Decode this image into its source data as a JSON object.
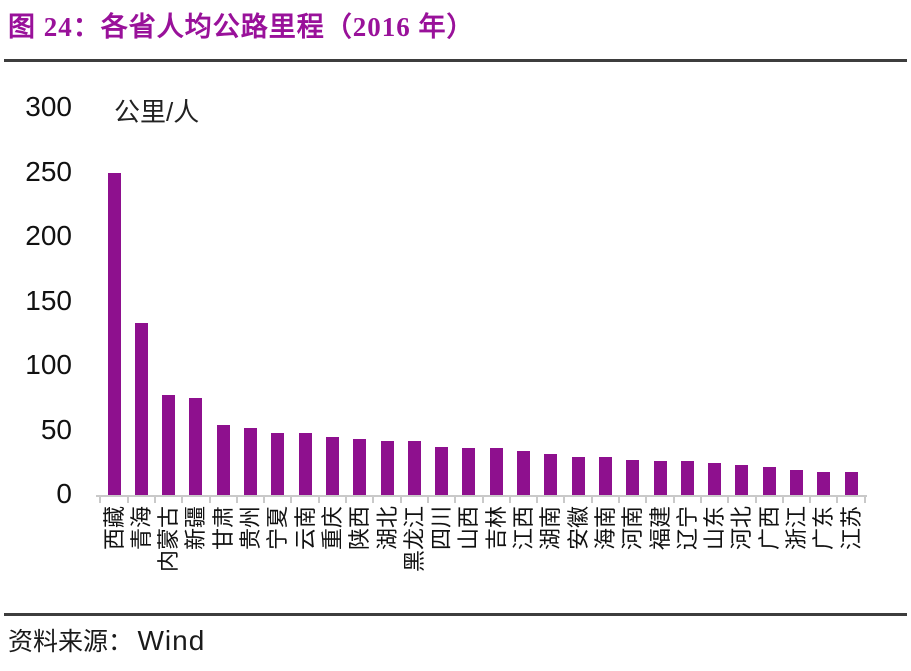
{
  "figure": {
    "title": "图 24：各省人均公路里程（2016 年）",
    "source_label": "资料来源：",
    "source_value": "Wind"
  },
  "chart_data": {
    "type": "bar",
    "title": "各省人均公路里程（2016 年）",
    "unit_label": "公里/人",
    "categories": [
      "西藏",
      "青海",
      "内蒙古",
      "新疆",
      "甘肃",
      "贵州",
      "宁夏",
      "云南",
      "重庆",
      "陕西",
      "湖北",
      "黑龙江",
      "四川",
      "山西",
      "吉林",
      "江西",
      "湖南",
      "安徽",
      "海南",
      "河南",
      "福建",
      "辽宁",
      "山东",
      "河北",
      "广西",
      "浙江",
      "广东",
      "江苏"
    ],
    "values": [
      249,
      133,
      77,
      75,
      54,
      52,
      48,
      48,
      45,
      43,
      42,
      42,
      37,
      36,
      36,
      34,
      32,
      29,
      29,
      27,
      26,
      26,
      25,
      23,
      22,
      19,
      18,
      18
    ],
    "xlabel": "",
    "ylabel": "公里/人",
    "ylim": [
      0,
      300
    ],
    "yticks": [
      0,
      50,
      100,
      150,
      200,
      250,
      300
    ],
    "grid": false,
    "legend": "none",
    "bar_color": "#8E108E"
  },
  "colors": {
    "title_accent": "#99119A",
    "bar": "#8E108E",
    "axis": "#C9C9C9",
    "rule": "#3D3D3D",
    "text": "#111111"
  }
}
